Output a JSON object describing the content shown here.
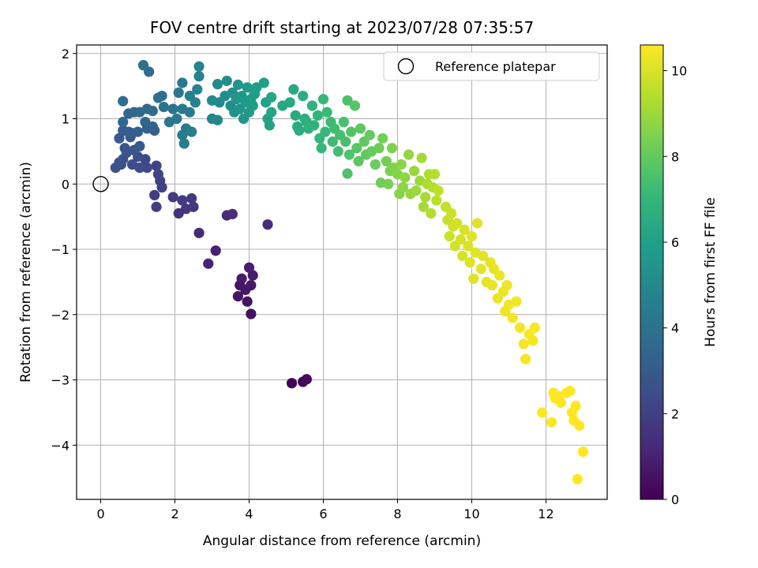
{
  "chart_data": {
    "type": "scatter",
    "title": "FOV centre drift starting at 2023/07/28 07:35:57",
    "xlabel": "Angular distance from reference (arcmin)",
    "ylabel": "Rotation from reference (arcmin)",
    "xlim": [
      -0.65,
      13.65
    ],
    "ylim": [
      -4.83,
      2.13
    ],
    "xticks": [
      0,
      2,
      4,
      6,
      8,
      10,
      12
    ],
    "yticks": [
      -4,
      -3,
      -2,
      -1,
      0,
      1,
      2
    ],
    "grid": true,
    "legend": {
      "entries": [
        "Reference platepar"
      ],
      "placement": "top-right"
    },
    "reference_point": {
      "x": 0,
      "y": 0,
      "marker": "open-circle"
    },
    "colorbar": {
      "label": "Hours from first FF file",
      "range": [
        0,
        10.6
      ],
      "ticks": [
        0,
        2,
        4,
        6,
        8,
        10
      ],
      "colormap": "viridis",
      "colormap_stops": [
        "#440154",
        "#482878",
        "#3e4a89",
        "#31688e",
        "#26828e",
        "#1f9e89",
        "#35b779",
        "#6ece58",
        "#b5de2b",
        "#fde725"
      ]
    },
    "series": [
      {
        "point_fields": [
          "x",
          "y",
          "hours"
        ],
        "points": [
          [
            5.15,
            -3.05,
            0.0
          ],
          [
            5.45,
            -3.03,
            0.1
          ],
          [
            5.55,
            -2.99,
            0.2
          ],
          [
            4.05,
            -1.99,
            0.45
          ],
          [
            3.95,
            -1.8,
            0.5
          ],
          [
            3.7,
            -1.72,
            0.55
          ],
          [
            3.75,
            -1.55,
            0.6
          ],
          [
            3.9,
            -1.62,
            0.65
          ],
          [
            4.05,
            -1.55,
            0.7
          ],
          [
            3.8,
            -1.45,
            0.75
          ],
          [
            4.1,
            -1.4,
            0.8
          ],
          [
            4.0,
            -1.28,
            0.85
          ],
          [
            3.1,
            -1.02,
            1.0
          ],
          [
            2.9,
            -1.22,
            1.1
          ],
          [
            2.65,
            -0.75,
            1.2
          ],
          [
            3.4,
            -0.48,
            1.3
          ],
          [
            3.55,
            -0.46,
            1.35
          ],
          [
            4.5,
            -0.62,
            1.4
          ],
          [
            2.1,
            -0.45,
            1.6
          ],
          [
            2.3,
            -0.38,
            1.65
          ],
          [
            2.5,
            -0.35,
            1.7
          ],
          [
            2.45,
            -0.22,
            1.75
          ],
          [
            2.2,
            -0.25,
            1.8
          ],
          [
            1.95,
            -0.2,
            1.85
          ],
          [
            1.5,
            -0.35,
            1.9
          ],
          [
            1.45,
            -0.17,
            1.95
          ],
          [
            1.65,
            -0.05,
            2.0
          ],
          [
            1.6,
            0.05,
            2.05
          ],
          [
            1.55,
            0.15,
            2.1
          ],
          [
            1.5,
            0.28,
            2.15
          ],
          [
            1.2,
            0.38,
            2.3
          ],
          [
            1.25,
            0.25,
            2.35
          ],
          [
            1.05,
            0.25,
            2.4
          ],
          [
            0.85,
            0.3,
            2.45
          ],
          [
            1.0,
            0.42,
            2.5
          ],
          [
            0.6,
            0.38,
            2.55
          ],
          [
            0.55,
            0.3,
            2.6
          ],
          [
            0.4,
            0.25,
            2.65
          ],
          [
            0.5,
            0.33,
            2.7
          ],
          [
            0.7,
            0.48,
            2.75
          ],
          [
            0.9,
            0.52,
            2.8
          ],
          [
            0.65,
            0.55,
            2.85
          ],
          [
            0.8,
            0.72,
            2.9
          ],
          [
            1.05,
            0.58,
            2.95
          ],
          [
            0.5,
            0.7,
            3.0
          ],
          [
            0.6,
            0.82,
            3.05
          ],
          [
            0.75,
            0.8,
            3.1
          ],
          [
            0.85,
            0.78,
            3.15
          ],
          [
            1.0,
            0.8,
            3.2
          ],
          [
            1.25,
            0.85,
            3.25
          ],
          [
            1.4,
            0.88,
            3.3
          ],
          [
            1.45,
            0.82,
            3.35
          ],
          [
            1.2,
            0.95,
            3.4
          ],
          [
            0.9,
            1.1,
            3.45
          ],
          [
            0.75,
            1.08,
            3.5
          ],
          [
            0.6,
            0.95,
            3.55
          ],
          [
            1.05,
            1.1,
            3.6
          ],
          [
            1.25,
            1.15,
            3.65
          ],
          [
            1.4,
            1.12,
            3.7
          ],
          [
            0.6,
            1.27,
            3.75
          ],
          [
            1.3,
            1.72,
            3.8
          ],
          [
            1.15,
            1.82,
            3.85
          ],
          [
            1.65,
            1.35,
            3.9
          ],
          [
            1.55,
            1.32,
            3.95
          ],
          [
            1.7,
            1.18,
            4.0
          ],
          [
            1.95,
            1.15,
            4.05
          ],
          [
            1.85,
            0.95,
            4.1
          ],
          [
            2.05,
            1.0,
            4.15
          ],
          [
            2.1,
            1.4,
            4.2
          ],
          [
            2.2,
            1.55,
            4.25
          ],
          [
            2.2,
            1.15,
            4.3
          ],
          [
            2.4,
            1.1,
            4.35
          ],
          [
            2.3,
            0.85,
            4.4
          ],
          [
            2.2,
            0.75,
            4.45
          ],
          [
            2.25,
            0.62,
            4.5
          ],
          [
            2.45,
            0.8,
            4.55
          ],
          [
            2.4,
            1.35,
            4.6
          ],
          [
            2.55,
            1.25,
            4.65
          ],
          [
            2.6,
            1.45,
            4.7
          ],
          [
            2.65,
            1.65,
            4.75
          ],
          [
            2.65,
            1.8,
            4.8
          ],
          [
            3.0,
            1.0,
            4.9
          ],
          [
            3.15,
            0.98,
            4.95
          ],
          [
            3.0,
            1.28,
            5.0
          ],
          [
            3.2,
            1.25,
            5.05
          ],
          [
            3.15,
            1.53,
            5.1
          ],
          [
            3.35,
            1.35,
            5.15
          ],
          [
            3.4,
            1.58,
            5.2
          ],
          [
            3.5,
            1.2,
            5.25
          ],
          [
            3.55,
            1.4,
            5.3
          ],
          [
            3.6,
            1.1,
            5.35
          ],
          [
            3.65,
            1.3,
            5.4
          ],
          [
            3.7,
            1.52,
            5.45
          ],
          [
            3.75,
            1.15,
            5.5
          ],
          [
            3.8,
            1.35,
            5.55
          ],
          [
            3.85,
            1.0,
            5.6
          ],
          [
            3.9,
            1.25,
            5.65
          ],
          [
            3.95,
            1.48,
            5.7
          ],
          [
            4.0,
            1.1,
            5.75
          ],
          [
            4.05,
            1.3,
            5.8
          ],
          [
            4.1,
            1.2,
            5.85
          ],
          [
            4.15,
            1.38,
            5.9
          ],
          [
            4.2,
            1.48,
            5.95
          ],
          [
            4.4,
            1.55,
            6.0
          ],
          [
            4.45,
            1.25,
            6.05
          ],
          [
            4.5,
            1.0,
            6.1
          ],
          [
            4.55,
            0.9,
            6.15
          ],
          [
            4.6,
            1.1,
            6.2
          ],
          [
            4.6,
            1.33,
            6.25
          ],
          [
            4.9,
            1.2,
            6.3
          ],
          [
            5.1,
            1.25,
            6.35
          ],
          [
            5.2,
            1.45,
            6.4
          ],
          [
            5.25,
            1.05,
            6.45
          ],
          [
            5.3,
            0.88,
            6.5
          ],
          [
            5.35,
            0.82,
            6.55
          ],
          [
            5.45,
            1.35,
            6.6
          ],
          [
            5.5,
            1.0,
            6.65
          ],
          [
            5.55,
            0.95,
            6.7
          ],
          [
            5.6,
            0.85,
            6.75
          ],
          [
            5.7,
            1.2,
            6.8
          ],
          [
            5.75,
            0.9,
            6.85
          ],
          [
            5.85,
            1.05,
            6.9
          ],
          [
            5.9,
            0.7,
            6.95
          ],
          [
            5.95,
            0.55,
            7.0
          ],
          [
            6.0,
            1.3,
            7.05
          ],
          [
            6.05,
            0.8,
            7.1
          ],
          [
            6.1,
            1.1,
            7.15
          ],
          [
            6.2,
            0.95,
            7.2
          ],
          [
            6.25,
            0.65,
            7.25
          ],
          [
            6.3,
            0.85,
            7.3
          ],
          [
            6.4,
            0.5,
            7.35
          ],
          [
            6.45,
            0.75,
            7.4
          ],
          [
            6.55,
            0.95,
            7.45
          ],
          [
            6.6,
            0.65,
            7.5
          ],
          [
            6.65,
            1.28,
            7.55
          ],
          [
            6.65,
            0.16,
            7.6
          ],
          [
            6.7,
            0.45,
            7.65
          ],
          [
            6.75,
            0.8,
            7.7
          ],
          [
            6.85,
            1.2,
            7.75
          ],
          [
            6.9,
            0.55,
            7.8
          ],
          [
            6.95,
            0.35,
            7.85
          ],
          [
            7.0,
            0.85,
            7.9
          ],
          [
            7.1,
            0.65,
            7.95
          ],
          [
            7.15,
            0.45,
            8.0
          ],
          [
            7.25,
            0.75,
            8.05
          ],
          [
            7.3,
            0.5,
            8.1
          ],
          [
            7.4,
            0.3,
            8.15
          ],
          [
            7.5,
            0.55,
            8.2
          ],
          [
            7.55,
            0.02,
            8.25
          ],
          [
            7.6,
            0.7,
            8.3
          ],
          [
            7.7,
            0.35,
            8.35
          ],
          [
            7.75,
            0.0,
            8.4
          ],
          [
            7.8,
            0.2,
            8.45
          ],
          [
            7.85,
            0.55,
            8.5
          ],
          [
            7.9,
            0.25,
            8.55
          ],
          [
            8.0,
            0.15,
            8.6
          ],
          [
            8.05,
            -0.15,
            8.65
          ],
          [
            8.1,
            0.3,
            8.7
          ],
          [
            8.15,
            -0.05,
            8.75
          ],
          [
            8.2,
            0.1,
            8.8
          ],
          [
            8.3,
            0.45,
            8.85
          ],
          [
            8.35,
            -0.15,
            8.9
          ],
          [
            8.45,
            0.2,
            8.95
          ],
          [
            8.5,
            -0.1,
            9.0
          ],
          [
            8.6,
            0.05,
            9.05
          ],
          [
            8.65,
            0.4,
            9.1
          ],
          [
            8.7,
            -0.35,
            9.15
          ],
          [
            8.75,
            -0.2,
            9.2
          ],
          [
            8.8,
            0.0,
            9.25
          ],
          [
            8.85,
            0.15,
            9.3
          ],
          [
            8.9,
            -0.45,
            9.35
          ],
          [
            8.95,
            -0.05,
            9.4
          ],
          [
            9.0,
            0.15,
            9.45
          ],
          [
            9.05,
            -0.25,
            9.5
          ],
          [
            9.1,
            -0.1,
            9.55
          ],
          [
            9.3,
            -0.35,
            9.65
          ],
          [
            9.35,
            -0.55,
            9.7
          ],
          [
            9.4,
            -0.8,
            9.75
          ],
          [
            9.45,
            -0.45,
            9.8
          ],
          [
            9.5,
            -0.65,
            9.85
          ],
          [
            9.55,
            -0.95,
            9.9
          ],
          [
            9.6,
            -0.6,
            9.92
          ],
          [
            9.7,
            -0.85,
            9.95
          ],
          [
            9.75,
            -1.1,
            9.97
          ],
          [
            9.8,
            -0.7,
            10.0
          ],
          [
            9.9,
            -0.95,
            10.02
          ],
          [
            9.95,
            -1.2,
            10.05
          ],
          [
            10.0,
            -0.8,
            10.08
          ],
          [
            10.05,
            -1.45,
            10.1
          ],
          [
            10.1,
            -1.05,
            10.12
          ],
          [
            10.15,
            -0.6,
            10.14
          ],
          [
            10.25,
            -1.3,
            10.16
          ],
          [
            10.3,
            -1.1,
            10.18
          ],
          [
            10.4,
            -1.5,
            10.2
          ],
          [
            10.5,
            -1.2,
            10.22
          ],
          [
            10.55,
            -1.55,
            10.24
          ],
          [
            10.6,
            -1.3,
            10.26
          ],
          [
            10.7,
            -1.75,
            10.28
          ],
          [
            10.75,
            -1.4,
            10.3
          ],
          [
            10.85,
            -1.65,
            10.32
          ],
          [
            10.9,
            -1.95,
            10.34
          ],
          [
            10.95,
            -1.55,
            10.36
          ],
          [
            11.0,
            -1.85,
            10.38
          ],
          [
            11.1,
            -2.05,
            10.4
          ],
          [
            11.2,
            -1.8,
            10.42
          ],
          [
            11.3,
            -2.2,
            10.44
          ],
          [
            11.4,
            -2.45,
            10.46
          ],
          [
            11.45,
            -2.68,
            10.48
          ],
          [
            11.55,
            -2.3,
            10.5
          ],
          [
            11.65,
            -2.4,
            10.52
          ],
          [
            11.7,
            -2.2,
            10.54
          ],
          [
            11.9,
            -3.5,
            10.56
          ],
          [
            12.15,
            -3.65,
            10.57
          ],
          [
            12.2,
            -3.2,
            10.58
          ],
          [
            12.35,
            -3.25,
            10.59
          ],
          [
            12.4,
            -3.35,
            10.6
          ],
          [
            12.55,
            -3.2,
            10.6
          ],
          [
            12.65,
            -3.17,
            10.6
          ],
          [
            12.7,
            -3.5,
            10.6
          ],
          [
            12.8,
            -3.4,
            10.6
          ],
          [
            12.9,
            -3.7,
            10.6
          ],
          [
            12.85,
            -4.52,
            10.6
          ],
          [
            13.0,
            -4.1,
            10.6
          ],
          [
            12.75,
            -3.62,
            10.6
          ],
          [
            12.25,
            -3.28,
            10.6
          ]
        ]
      }
    ]
  }
}
